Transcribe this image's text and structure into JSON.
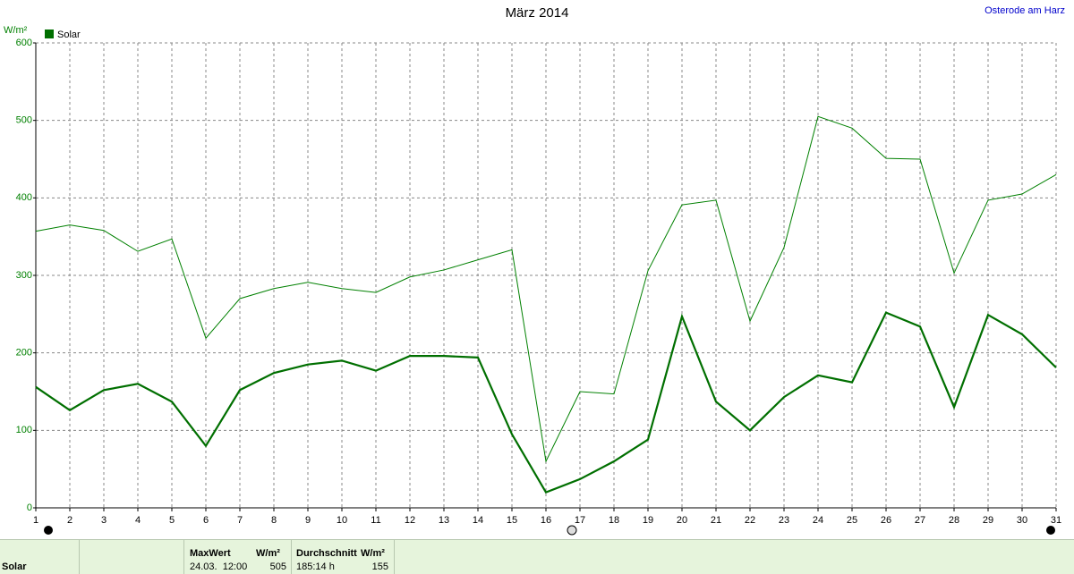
{
  "chart_data": {
    "type": "line",
    "title": "März 2014",
    "annotation": "Osterode am Harz",
    "y_label": "W/m²",
    "x": [
      1,
      2,
      3,
      4,
      5,
      6,
      7,
      8,
      9,
      10,
      11,
      12,
      13,
      14,
      15,
      16,
      17,
      18,
      19,
      20,
      21,
      22,
      23,
      24,
      25,
      26,
      27,
      28,
      29,
      30,
      31
    ],
    "xlim": [
      1,
      31
    ],
    "xticks": [
      1,
      2,
      3,
      4,
      5,
      6,
      7,
      8,
      9,
      10,
      11,
      12,
      13,
      14,
      15,
      16,
      17,
      18,
      19,
      20,
      21,
      22,
      23,
      24,
      25,
      26,
      27,
      28,
      29,
      30,
      31
    ],
    "ylim": [
      0,
      600
    ],
    "yticks": [
      0,
      100,
      200,
      300,
      400,
      500,
      600
    ],
    "grid": true,
    "series": [
      {
        "name": "Solar",
        "color": "#006f00",
        "values": [
          156,
          126,
          152,
          160,
          137,
          80,
          152,
          174,
          185,
          190,
          177,
          196,
          196,
          194,
          95,
          20,
          37,
          60,
          88,
          247,
          137,
          100,
          143,
          171,
          162,
          252,
          234,
          130,
          249,
          224,
          181
        ]
      },
      {
        "color": "#008000",
        "values": [
          357,
          365,
          358,
          331,
          347,
          219,
          270,
          283,
          291,
          283,
          278,
          298,
          307,
          320,
          333,
          60,
          150,
          147,
          306,
          391,
          397,
          241,
          336,
          505,
          490,
          451,
          450,
          303,
          397,
          405,
          430
        ]
      }
    ]
  },
  "footer": {
    "label": "Solar",
    "max_header": "MaxWert",
    "max_unit": "W/m²",
    "max_time": "24.03.  12:00",
    "max_value": 505,
    "avg_header": "Durchschnitt",
    "avg_unit": "W/m²",
    "avg_time": "185:14 h",
    "avg_value": 155
  }
}
